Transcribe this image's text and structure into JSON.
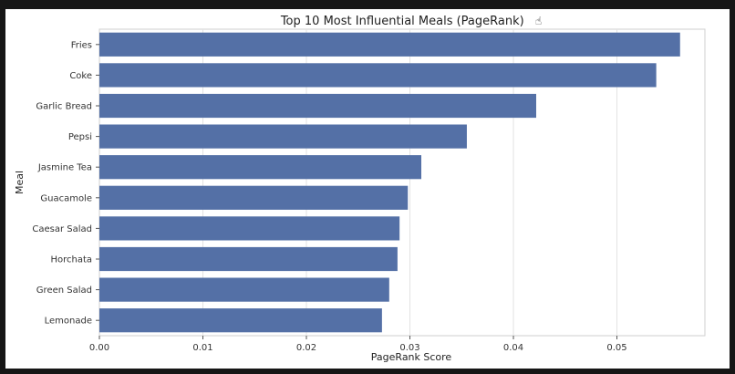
{
  "chart_data": {
    "type": "bar",
    "orientation": "horizontal",
    "title": "Top 10 Most Influential Meals (PageRank)",
    "title_icon": "hand-cursor-icon",
    "xlabel": "PageRank Score",
    "ylabel": "Meal",
    "categories": [
      "Fries",
      "Coke",
      "Garlic Bread",
      "Pepsi",
      "Jasmine Tea",
      "Guacamole",
      "Caesar Salad",
      "Horchata",
      "Green Salad",
      "Lemonade"
    ],
    "values": [
      0.0561,
      0.0538,
      0.0422,
      0.0355,
      0.0311,
      0.0298,
      0.029,
      0.0288,
      0.028,
      0.0273
    ],
    "xlim": [
      0,
      0.0585
    ],
    "xticks": [
      "0.00",
      "0.01",
      "0.02",
      "0.03",
      "0.04",
      "0.05"
    ],
    "xtick_values": [
      0,
      0.01,
      0.02,
      0.03,
      0.04,
      0.05
    ],
    "bar_color": "#5470a6",
    "grid": true,
    "legend": "none"
  }
}
